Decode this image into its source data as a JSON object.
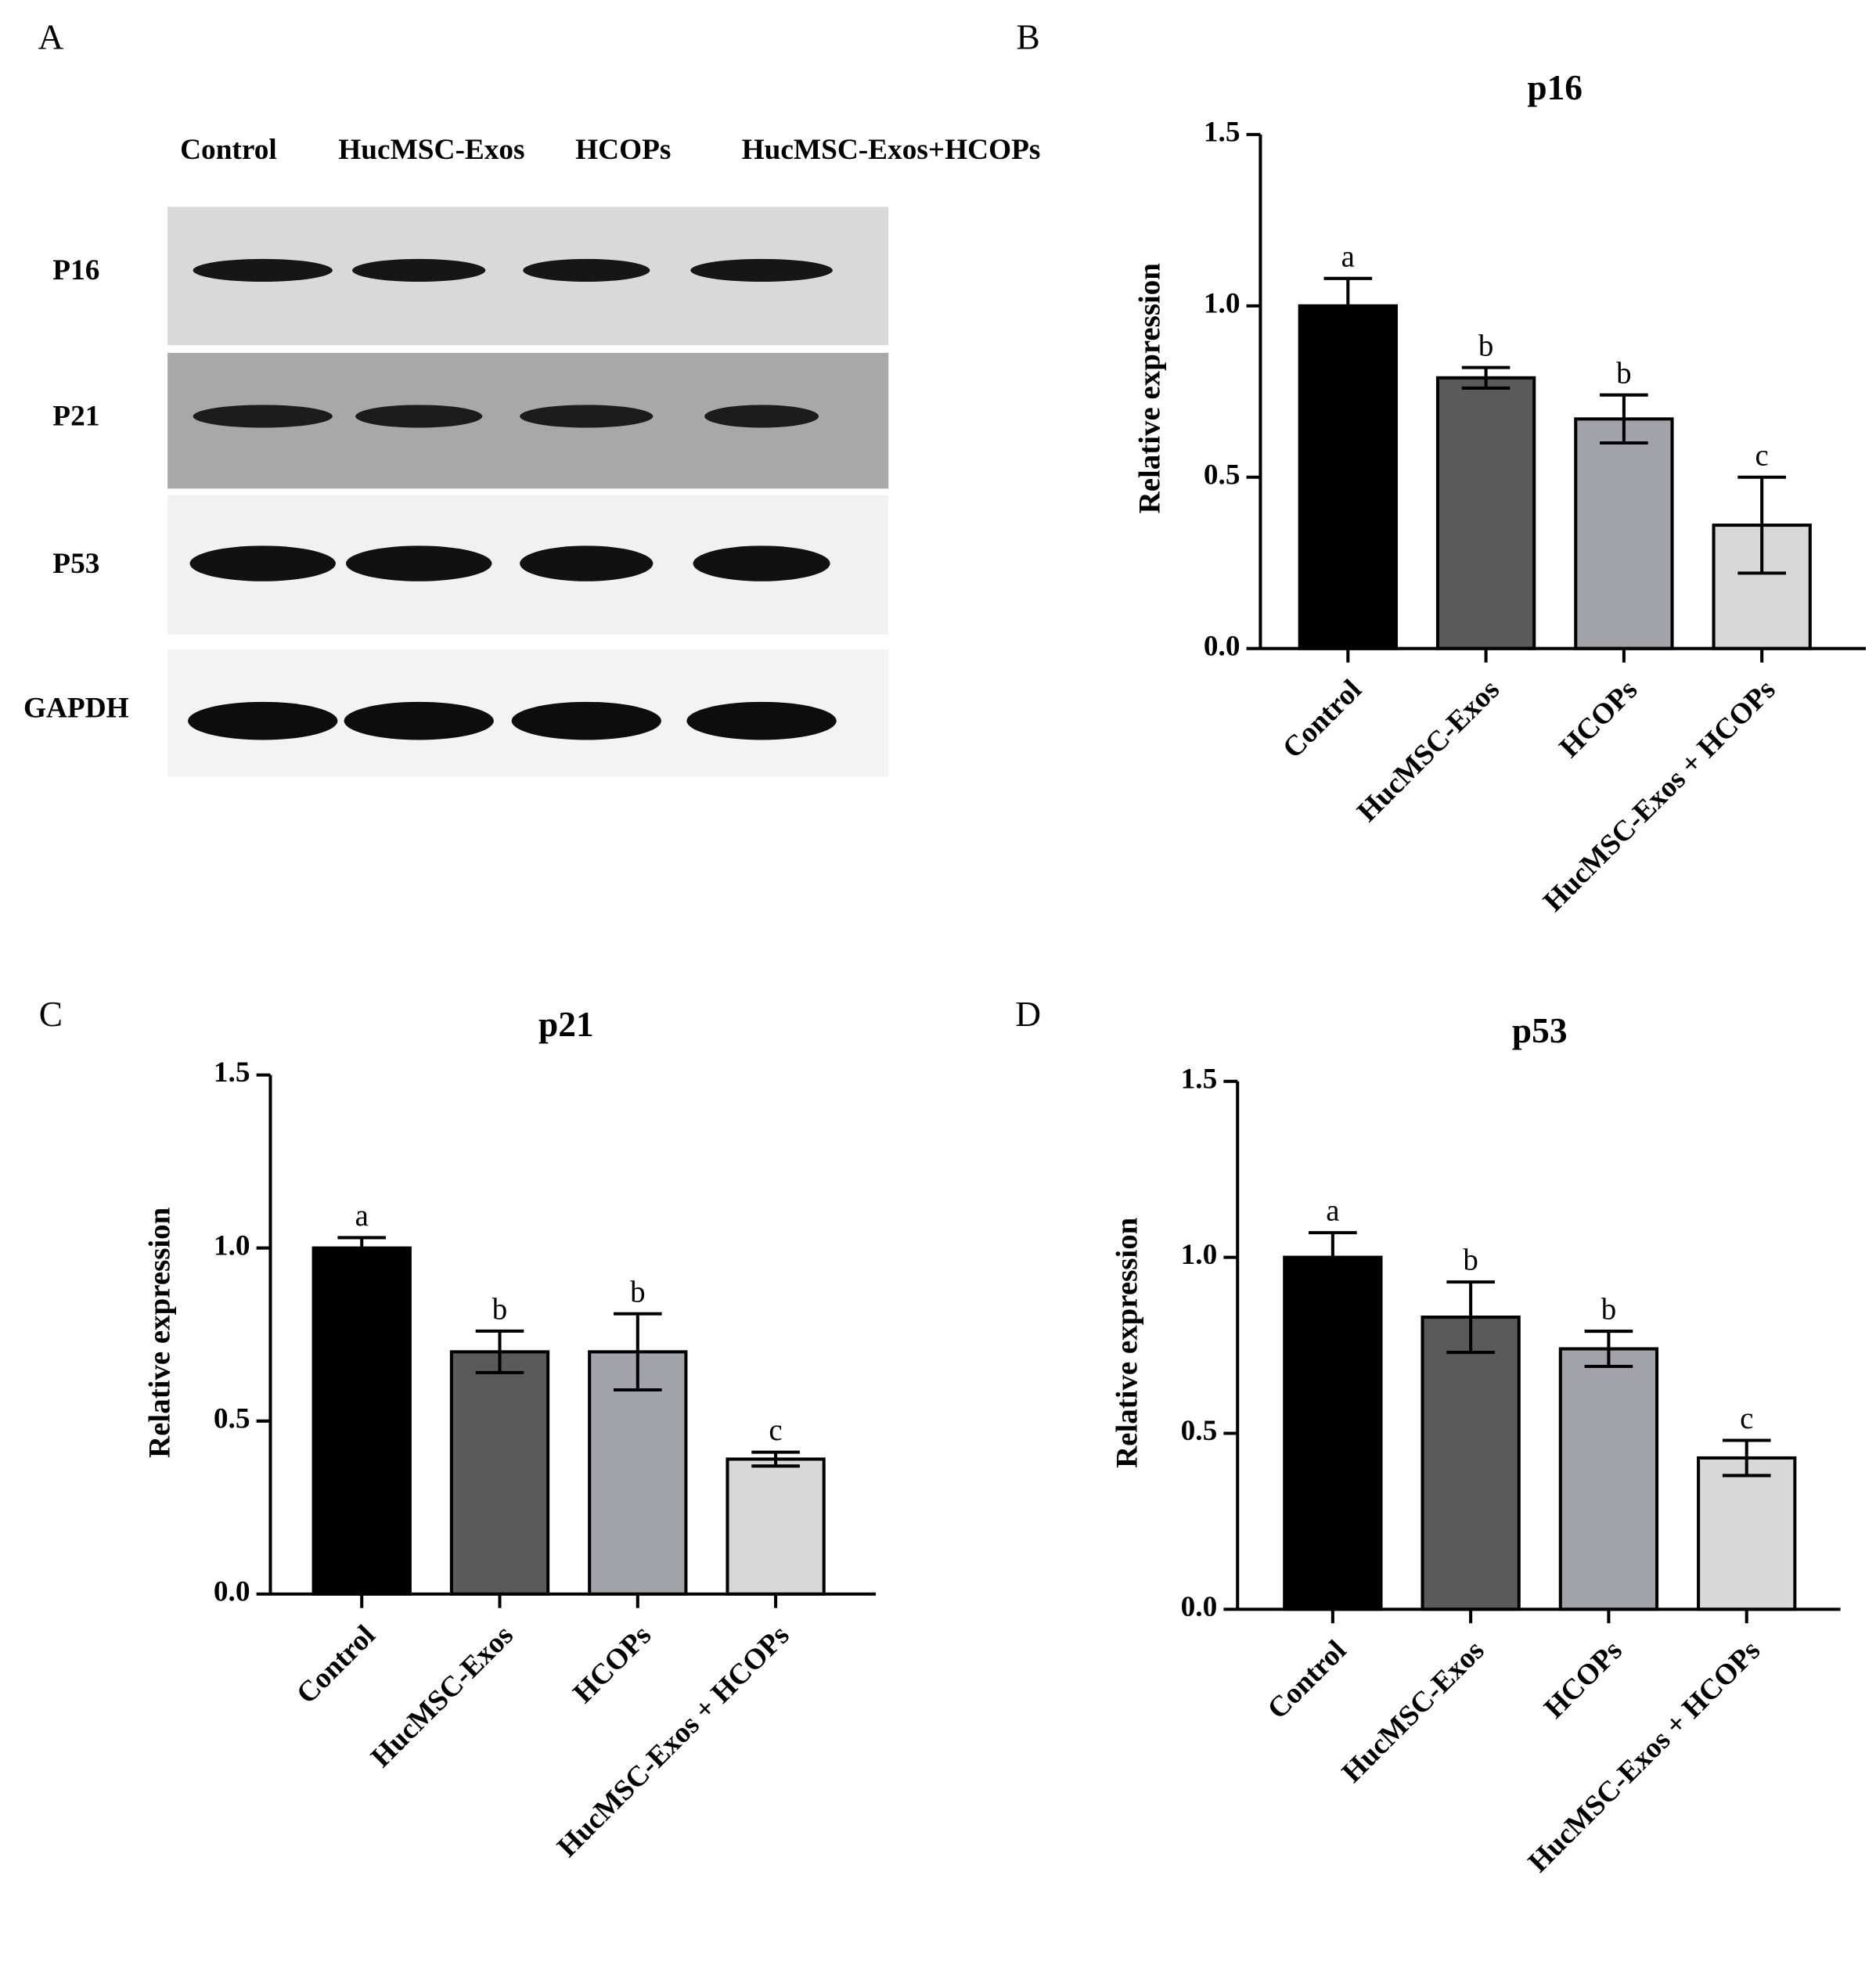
{
  "panel_labels": [
    "A",
    "B",
    "C",
    "D"
  ],
  "blot": {
    "lanes": [
      "Control",
      "HucMSC-Exos",
      "HCOPs",
      "HucMSC-Exos+HCOPs"
    ],
    "proteins": [
      "P16",
      "P21",
      "P53",
      "GAPDH"
    ]
  },
  "chart_data": [
    {
      "type": "bar",
      "title": "p16",
      "y_label": "Relative expression",
      "categories": [
        "Control",
        "HucMSC-Exos",
        "HCOPs",
        "HucMSC-Exos + HCOPs"
      ],
      "values": [
        1.0,
        0.79,
        0.67,
        0.36
      ],
      "errors": [
        0.08,
        0.03,
        0.07,
        0.14
      ],
      "annotations": [
        "a",
        "b",
        "b",
        "c"
      ],
      "colors": [
        "#000000",
        "#5a5a5a",
        "#a2a2aa",
        "#d8d8d8"
      ],
      "ylim": [
        0,
        1.5
      ],
      "yticks": [
        {
          "value": 0,
          "label": "0.0"
        },
        {
          "value": 0.5,
          "label": "0.5"
        },
        {
          "value": 1,
          "label": "1.0"
        },
        {
          "value": 1.5,
          "label": "1.5"
        }
      ]
    },
    {
      "type": "bar",
      "title": "p21",
      "y_label": "Relative expression",
      "categories": [
        "Control",
        "HucMSC-Exos",
        "HCOPs",
        "HucMSC-Exos + HCOPs"
      ],
      "values": [
        1.0,
        0.7,
        0.7,
        0.39
      ],
      "errors": [
        0.03,
        0.06,
        0.11,
        0.02
      ],
      "annotations": [
        "a",
        "b",
        "b",
        "c"
      ],
      "colors": [
        "#000000",
        "#5a5a5a",
        "#a2a2aa",
        "#d8d8d8"
      ],
      "ylim": [
        0,
        1.5
      ],
      "yticks": [
        {
          "value": 0,
          "label": "0.0"
        },
        {
          "value": 0.5,
          "label": "0.5"
        },
        {
          "value": 1,
          "label": "1.0"
        },
        {
          "value": 1.5,
          "label": "1.5"
        }
      ]
    },
    {
      "type": "bar",
      "title": "p53",
      "y_label": "Relative expression",
      "categories": [
        "Control",
        "HucMSC-Exos",
        "HCOPs",
        "HucMSC-Exos + HCOPs"
      ],
      "values": [
        1.0,
        0.83,
        0.74,
        0.43
      ],
      "errors": [
        0.07,
        0.1,
        0.05,
        0.05
      ],
      "annotations": [
        "a",
        "b",
        "b",
        "c"
      ],
      "colors": [
        "#000000",
        "#5a5a5a",
        "#a2a2aa",
        "#d8d8d8"
      ],
      "ylim": [
        0,
        1.5
      ],
      "yticks": [
        {
          "value": 0,
          "label": "0.0"
        },
        {
          "value": 0.5,
          "label": "0.5"
        },
        {
          "value": 1,
          "label": "1.0"
        },
        {
          "value": 1.5,
          "label": "1.5"
        }
      ]
    }
  ]
}
